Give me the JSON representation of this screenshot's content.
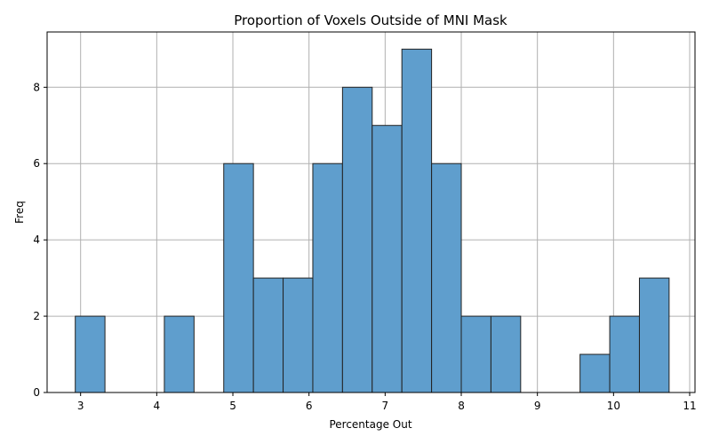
{
  "chart_data": {
    "type": "bar",
    "title": "Proportion of Voxels Outside of MNI Mask",
    "xlabel": "Percentage Out",
    "ylabel": "Freq",
    "xlim": [
      2.56,
      11.07
    ],
    "ylim": [
      0,
      9.45
    ],
    "xticks": [
      3,
      4,
      5,
      6,
      7,
      8,
      9,
      10,
      11
    ],
    "yticks": [
      0,
      2,
      4,
      6,
      8
    ],
    "grid": true,
    "bins": [
      {
        "x0": 2.93,
        "x1": 3.32,
        "count": 2
      },
      {
        "x0": 3.32,
        "x1": 3.71,
        "count": 0
      },
      {
        "x0": 3.71,
        "x1": 4.1,
        "count": 0
      },
      {
        "x0": 4.1,
        "x1": 4.49,
        "count": 2
      },
      {
        "x0": 4.49,
        "x1": 4.88,
        "count": 0
      },
      {
        "x0": 4.88,
        "x1": 5.27,
        "count": 6
      },
      {
        "x0": 5.27,
        "x1": 5.66,
        "count": 3
      },
      {
        "x0": 5.66,
        "x1": 6.05,
        "count": 3
      },
      {
        "x0": 6.05,
        "x1": 6.44,
        "count": 6
      },
      {
        "x0": 6.44,
        "x1": 6.83,
        "count": 8
      },
      {
        "x0": 6.83,
        "x1": 7.22,
        "count": 7
      },
      {
        "x0": 7.22,
        "x1": 7.61,
        "count": 9
      },
      {
        "x0": 7.61,
        "x1": 8.0,
        "count": 6
      },
      {
        "x0": 8.0,
        "x1": 8.39,
        "count": 2
      },
      {
        "x0": 8.39,
        "x1": 8.78,
        "count": 2
      },
      {
        "x0": 8.78,
        "x1": 9.17,
        "count": 0
      },
      {
        "x0": 9.17,
        "x1": 9.56,
        "count": 0
      },
      {
        "x0": 9.56,
        "x1": 9.95,
        "count": 1
      },
      {
        "x0": 9.95,
        "x1": 10.34,
        "count": 2
      },
      {
        "x0": 10.34,
        "x1": 10.73,
        "count": 3
      }
    ],
    "colors": {
      "bar": "#5f9ecd",
      "edge": "#222222",
      "grid": "#b0b0b0"
    }
  }
}
